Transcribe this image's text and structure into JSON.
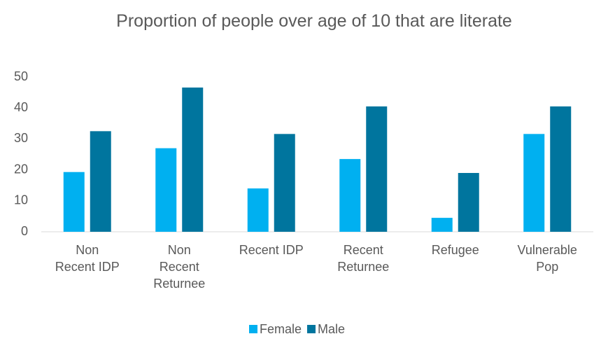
{
  "chart_data": {
    "type": "bar",
    "title": "Proportion of people over age of 10 that are literate",
    "categories": [
      "Non Recent IDP",
      "Non Recent Returnee",
      "Recent IDP",
      "Recent Returnee",
      "Refugee",
      "Vulnerable Pop"
    ],
    "series": [
      {
        "name": "Female",
        "color": "#00b0f0",
        "values": [
          19.3,
          27,
          14,
          23.5,
          4.5,
          31.6
        ]
      },
      {
        "name": "Male",
        "color": "#00759e",
        "values": [
          32.5,
          46.6,
          31.6,
          40.5,
          19,
          40.5
        ]
      }
    ],
    "ylim": [
      0,
      50
    ],
    "yticks": [
      0,
      10,
      20,
      30,
      40,
      50
    ],
    "grid": false,
    "legend": "bottom"
  }
}
